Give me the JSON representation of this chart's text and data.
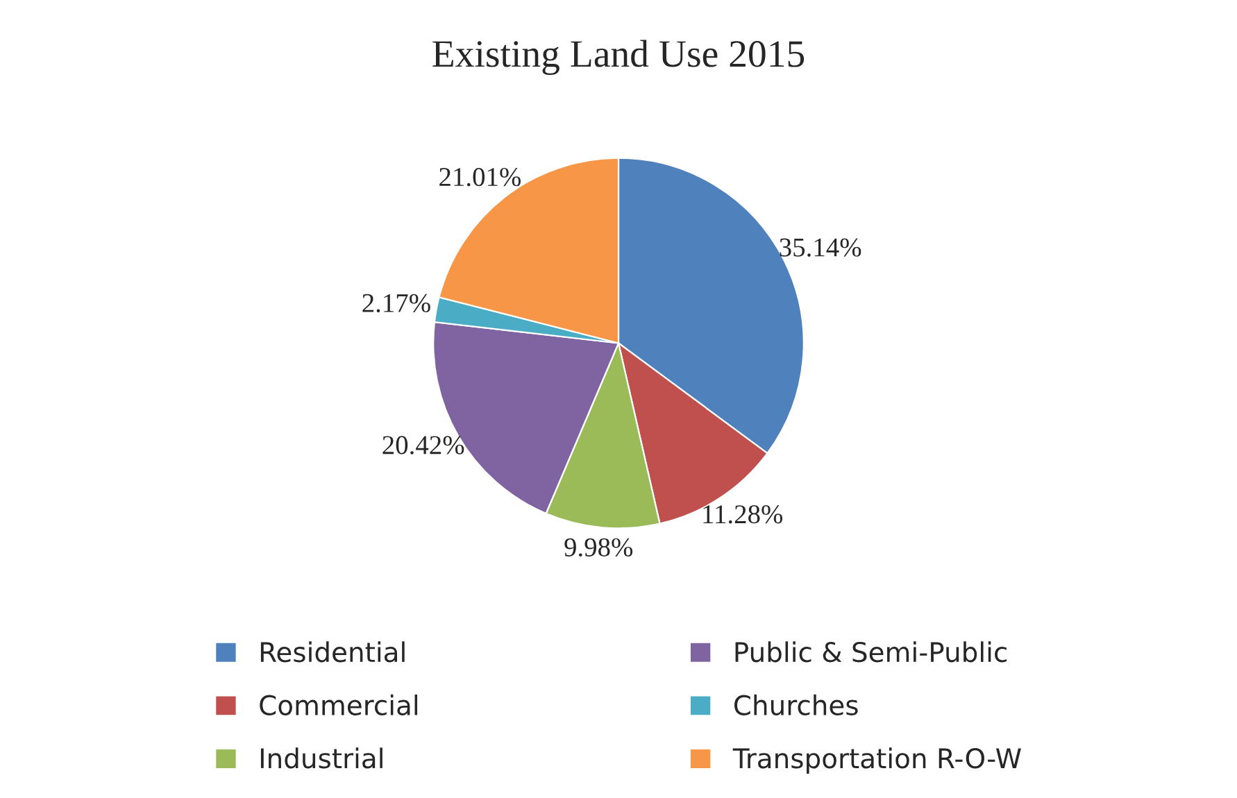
{
  "chart_data": {
    "type": "pie",
    "title": "Existing Land Use 2015",
    "categories": [
      "Residential",
      "Commercial",
      "Industrial",
      "Public & Semi-Public",
      "Churches",
      "Transportation R-O-W"
    ],
    "values": [
      35.14,
      11.28,
      9.98,
      20.42,
      2.17,
      21.01
    ],
    "value_labels": [
      "35.14%",
      "11.28%",
      "9.98%",
      "20.42%",
      "2.17%",
      "21.01%"
    ],
    "colors": [
      "#4f81bd",
      "#c0504d",
      "#9bbb59",
      "#8064a2",
      "#4bacc6",
      "#f79646"
    ],
    "legend": "bottom"
  }
}
